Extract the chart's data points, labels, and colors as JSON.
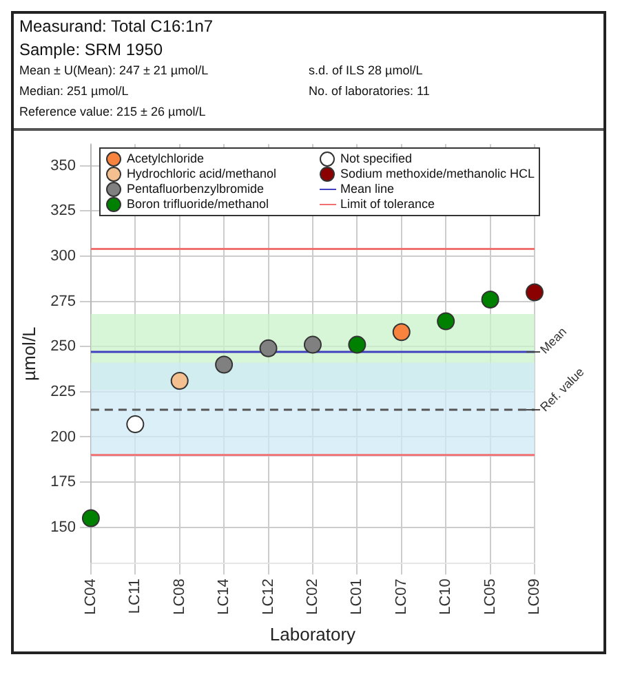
{
  "chart_data": {
    "type": "scatter",
    "title": "Measurand: Total C16:1n7",
    "subtitle": "Sample: SRM 1950",
    "annotations": [
      "Mean ± U(Mean): 247 ± 21 µmol/L",
      "s.d. of ILS 28 µmol/L",
      "Median: 251 µmol/L",
      "No. of laboratories: 11",
      "Reference value: 215 ± 26 µmol/L",
      "Mean",
      "Ref. value"
    ],
    "xlabel": "Laboratory",
    "ylabel": "µmol/L",
    "categories": [
      "LC04",
      "LC11",
      "LC08",
      "LC14",
      "LC12",
      "LC02",
      "LC01",
      "LC07",
      "LC10",
      "LC05",
      "LC09"
    ],
    "series": [
      {
        "name": "Acetylchloride",
        "color": "#f7833e",
        "values": [
          null,
          null,
          null,
          null,
          null,
          null,
          null,
          258,
          null,
          null,
          null
        ]
      },
      {
        "name": "Hydrochloric acid/methanol",
        "color": "#f5c08f",
        "values": [
          null,
          null,
          231,
          null,
          null,
          null,
          null,
          null,
          null,
          null,
          null
        ]
      },
      {
        "name": "Pentafluorbenzylbromide",
        "color": "#808080",
        "values": [
          null,
          null,
          null,
          240,
          249,
          251,
          null,
          null,
          null,
          null,
          null
        ]
      },
      {
        "name": "Boron trifluoride/methanol",
        "color": "#008000",
        "values": [
          155,
          null,
          null,
          null,
          null,
          null,
          251,
          null,
          264,
          276,
          null
        ]
      },
      {
        "name": "Not specified",
        "color": "#ffffff",
        "values": [
          null,
          207,
          null,
          null,
          null,
          null,
          null,
          null,
          null,
          null,
          null
        ]
      },
      {
        "name": "Sodium methoxide/methanolic HCL",
        "color": "#8b0000",
        "values": [
          null,
          null,
          null,
          null,
          null,
          null,
          null,
          null,
          null,
          null,
          280
        ]
      }
    ],
    "ylim": [
      130,
      362
    ],
    "yticks": [
      150,
      175,
      200,
      225,
      250,
      275,
      300,
      325,
      350
    ],
    "bands": [
      {
        "axis": "y",
        "from": 226,
        "to": 268,
        "color": "#c9f2c9"
      },
      {
        "axis": "y",
        "from": 189,
        "to": 241,
        "color": "#cfe9f7"
      }
    ],
    "ref_lines": [
      {
        "axis": "y",
        "value": 247,
        "label": "Mean line",
        "color": "#4040c0"
      },
      {
        "axis": "y",
        "value": 215,
        "color": "#555555",
        "line_style": "dashed"
      },
      {
        "axis": "y",
        "value": 304,
        "label": "Limit of tolerance",
        "color": "#f07070"
      },
      {
        "axis": "y",
        "value": 190,
        "color": "#f07070"
      }
    ],
    "grid": true,
    "legend": "top",
    "marker": "circle"
  }
}
